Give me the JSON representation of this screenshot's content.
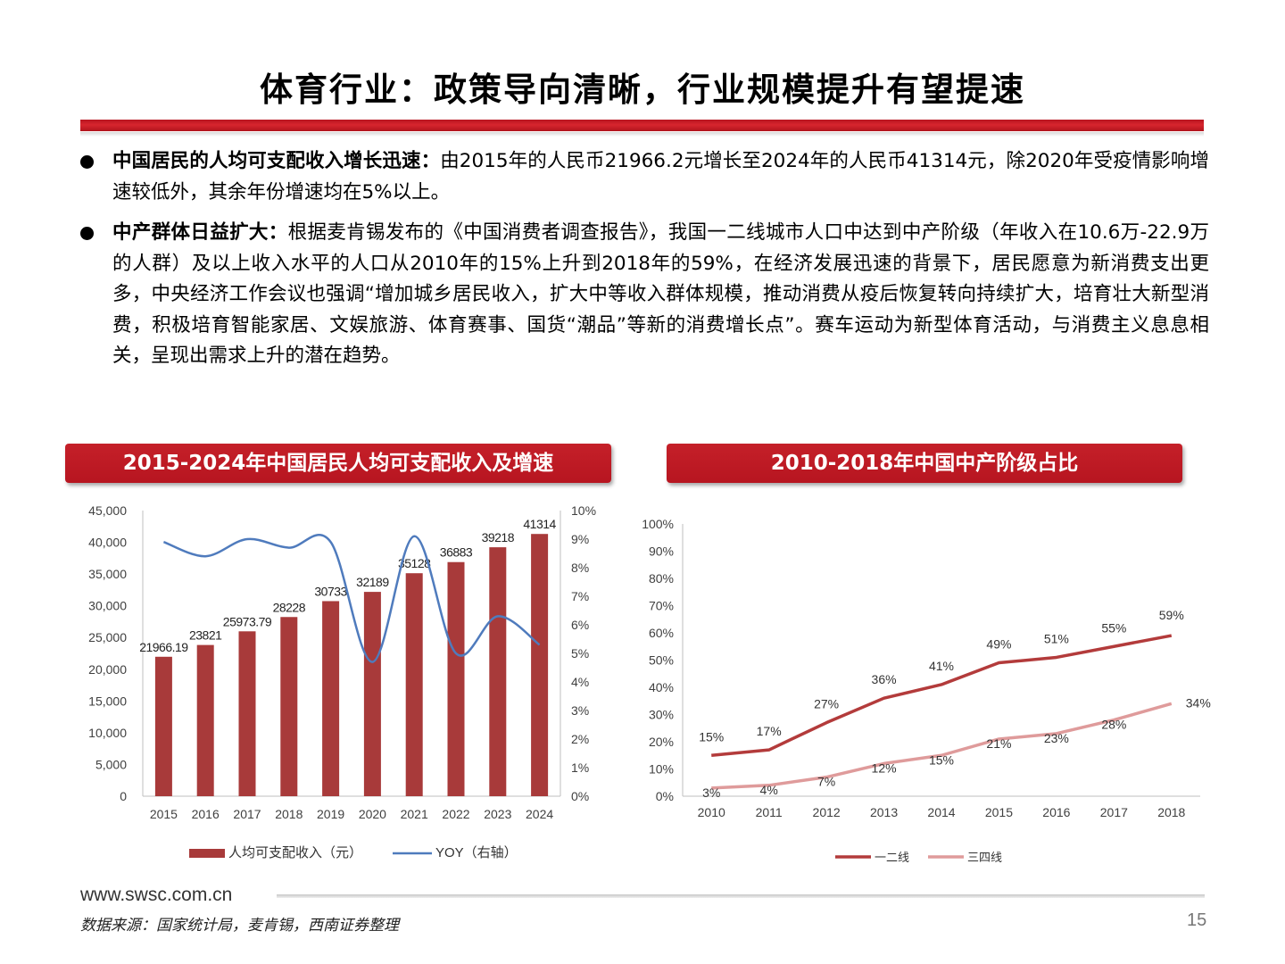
{
  "page": {
    "title": "体育行业：政策导向清晰，行业规模提升有望提速",
    "bullets": [
      {
        "lead": "中国居民的人均可支配收入增长迅速：",
        "text": "由2015年的人民币21966.2元增长至2024年的人民币41314元，除2020年受疫情影响增速较低外，其余年份增速均在5%以上。"
      },
      {
        "lead": "中产群体日益扩大：",
        "text": "根据麦肯锡发布的《中国消费者调查报告》，我国一二线城市人口中达到中产阶级（年收入在10.6万-22.9万的人群）及以上收入水平的人口从2010年的15%上升到2018年的59%，在经济发展迅速的背景下，居民愿意为新消费支出更多，中央经济工作会议也强调“增加城乡居民收入，扩大中等收入群体规模，推动消费从疫后恢复转向持续扩大，培育壮大新型消费，积极培育智能家居、文娱旅游、体育赛事、国货“潮品”等新的消费增长点”。赛车运动为新型体育活动，与消费主义息息相关，呈现出需求上升的潜在趋势。"
      }
    ],
    "footer_url": "www.swsc.com.cn",
    "source": "数据来源：国家统计局，麦肯锡，西南证券整理",
    "page_number": "15"
  },
  "colors": {
    "accent_red": "#c0151f",
    "bar_red": "#a83a3a",
    "line_blue": "#4f7bbd",
    "line_dark_red": "#b33b3b",
    "line_pink": "#df9b9b"
  },
  "chart_data": [
    {
      "type": "bar",
      "title": "2015-2024年中国居民人均可支配收入及增速",
      "categories": [
        "2015",
        "2016",
        "2017",
        "2018",
        "2019",
        "2020",
        "2021",
        "2022",
        "2023",
        "2024"
      ],
      "series": [
        {
          "name": "人均可支配收入（元）",
          "axis": "left",
          "kind": "bar",
          "values": [
            21966.19,
            23821,
            25973.79,
            28228,
            30733,
            32189,
            35128,
            36883,
            39218,
            41314
          ],
          "labels": [
            "21966.19",
            "23821",
            "25973.79",
            "28228",
            "30733",
            "32189",
            "35128",
            "36883",
            "39218",
            "41314"
          ]
        },
        {
          "name": "YOY（右轴）",
          "axis": "right",
          "kind": "line",
          "values": [
            8.9,
            8.4,
            9.0,
            8.7,
            8.9,
            4.7,
            9.1,
            5.0,
            6.3,
            5.3
          ]
        }
      ],
      "ylim": [
        0,
        45000
      ],
      "yticks": [
        "0",
        "5,000",
        "10,000",
        "15,000",
        "20,000",
        "25,000",
        "30,000",
        "35,000",
        "40,000",
        "45,000"
      ],
      "y2lim": [
        0,
        10
      ],
      "y2ticks": [
        "0%",
        "1%",
        "2%",
        "3%",
        "4%",
        "5%",
        "6%",
        "7%",
        "8%",
        "9%",
        "10%"
      ],
      "legend": "bottom"
    },
    {
      "type": "line",
      "title": "2010-2018年中国中产阶级占比",
      "categories": [
        "2010",
        "2011",
        "2012",
        "2013",
        "2014",
        "2015",
        "2016",
        "2017",
        "2018"
      ],
      "series": [
        {
          "name": "一二线",
          "values": [
            15,
            17,
            27,
            36,
            41,
            49,
            51,
            55,
            59
          ],
          "labels": [
            "15%",
            "17%",
            "27%",
            "36%",
            "41%",
            "49%",
            "51%",
            "55%",
            "59%"
          ]
        },
        {
          "name": "三四线",
          "values": [
            3,
            4,
            7,
            12,
            15,
            21,
            23,
            28,
            34
          ],
          "labels": [
            "3%",
            "4%",
            "7%",
            "12%",
            "15%",
            "21%",
            "23%",
            "28%",
            "34%"
          ]
        }
      ],
      "ylim": [
        0,
        100
      ],
      "yticks": [
        "0%",
        "10%",
        "20%",
        "30%",
        "40%",
        "50%",
        "60%",
        "70%",
        "80%",
        "90%",
        "100%"
      ],
      "legend": "bottom"
    }
  ]
}
